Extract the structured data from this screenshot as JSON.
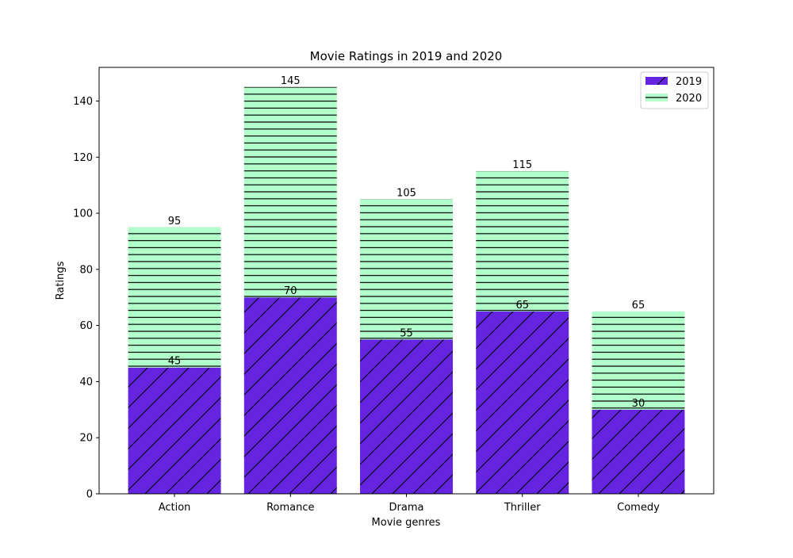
{
  "chart_data": {
    "type": "bar",
    "stacked": true,
    "title": "Movie Ratings in 2019 and 2020",
    "xlabel": "Movie genres",
    "ylabel": "Ratings",
    "categories": [
      "Action",
      "Romance",
      "Drama",
      "Thriller",
      "Comedy"
    ],
    "series": [
      {
        "name": "2019",
        "values": [
          45,
          70,
          55,
          65,
          30
        ],
        "color": "#6424e0",
        "hatch": "diagonal"
      },
      {
        "name": "2020",
        "values": [
          50,
          75,
          50,
          50,
          35
        ],
        "color": "#b3ffcc",
        "hatch": "horizontal"
      }
    ],
    "data_labels": {
      "2019": [
        "45",
        "70",
        "55",
        "65",
        "30"
      ],
      "2020": [
        "95",
        "145",
        "105",
        "115",
        "65"
      ]
    },
    "ylim": [
      0,
      152
    ],
    "yticks": [
      0,
      20,
      40,
      60,
      80,
      100,
      120,
      140
    ],
    "legend_position": "top-right",
    "grid": false
  }
}
